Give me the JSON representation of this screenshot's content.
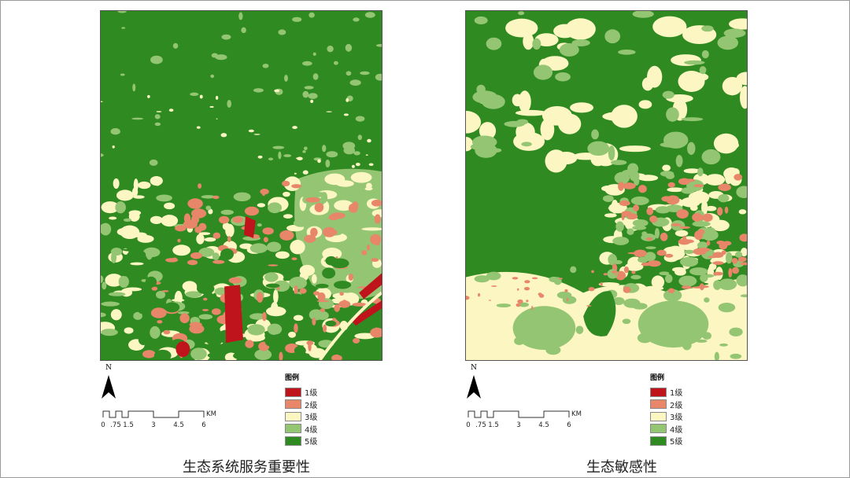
{
  "colors": {
    "level1": "#c0141c",
    "level2": "#e8866a",
    "level3": "#fbf6c2",
    "level4": "#93c572",
    "level5": "#2f8a22"
  },
  "north_label": "N",
  "scale": {
    "labels": [
      "0",
      ".75",
      "1.5",
      "3",
      "4.5",
      "6"
    ],
    "unit": "KM"
  },
  "legend": {
    "title": "图例",
    "items": [
      {
        "label": "1级",
        "color": "#c0141c"
      },
      {
        "label": "2级",
        "color": "#e8866a"
      },
      {
        "label": "3级",
        "color": "#fbf6c2"
      },
      {
        "label": "4级",
        "color": "#93c572"
      },
      {
        "label": "5级",
        "color": "#2f8a22"
      }
    ]
  },
  "maps": [
    {
      "caption": "生态系统服务重要性"
    },
    {
      "caption": "生态敏感性"
    }
  ]
}
